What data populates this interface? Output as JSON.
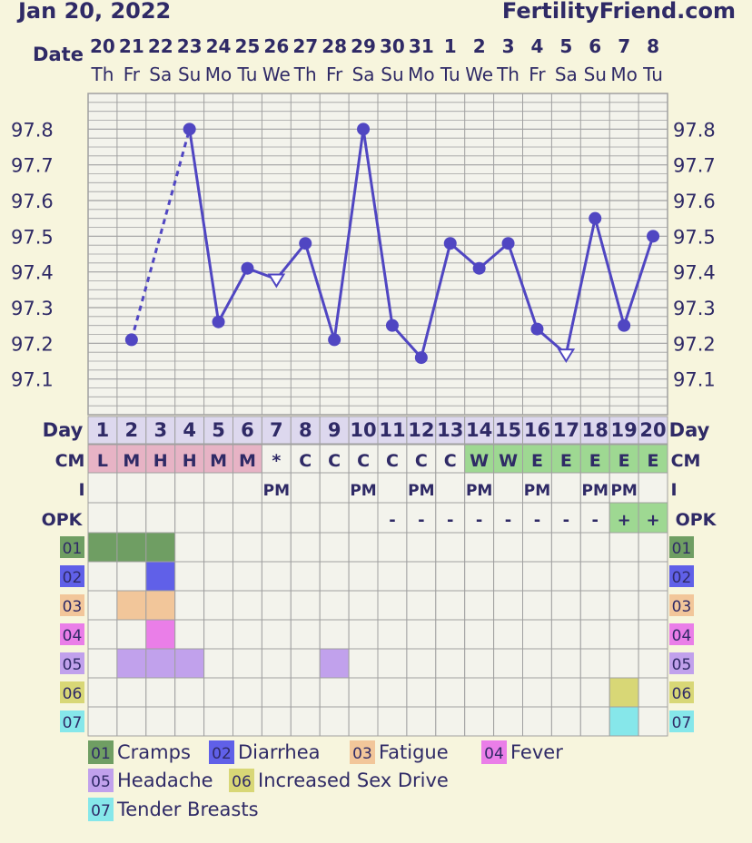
{
  "header": {
    "date": "Jan 20, 2022",
    "site": "FertilityFriend.com"
  },
  "colors": {
    "background": "#f7f5dd",
    "cell": "#f3f3ec",
    "grid": "#a0a0a0",
    "line": "#5046c2",
    "text": "#2f2a66",
    "cm_pink": "#e7b3c5",
    "cm_green": "#9ed892",
    "opk_green": "#9ed892"
  },
  "row_labels": {
    "date": "Date",
    "day": "Day",
    "cm": "CM",
    "i": "I",
    "opk": "OPK"
  },
  "columns": {
    "dates": [
      "20",
      "21",
      "22",
      "23",
      "24",
      "25",
      "26",
      "27",
      "28",
      "29",
      "30",
      "31",
      "1",
      "2",
      "3",
      "4",
      "5",
      "6",
      "7",
      "8"
    ],
    "weekdays": [
      "Th",
      "Fr",
      "Sa",
      "Su",
      "Mo",
      "Tu",
      "We",
      "Th",
      "Fr",
      "Sa",
      "Su",
      "Mo",
      "Tu",
      "We",
      "Th",
      "Fr",
      "Sa",
      "Su",
      "Mo",
      "Tu"
    ],
    "days": [
      "1",
      "2",
      "3",
      "4",
      "5",
      "6",
      "7",
      "8",
      "9",
      "10",
      "11",
      "12",
      "13",
      "14",
      "15",
      "16",
      "17",
      "18",
      "19",
      "20"
    ],
    "cm": [
      "L",
      "M",
      "H",
      "H",
      "M",
      "M",
      "*",
      "C",
      "C",
      "C",
      "C",
      "C",
      "C",
      "W",
      "W",
      "E",
      "E",
      "E",
      "E",
      "E"
    ],
    "cm_type": [
      "pink",
      "pink",
      "pink",
      "pink",
      "pink",
      "pink",
      "none",
      "none",
      "none",
      "none",
      "none",
      "none",
      "none",
      "green",
      "green",
      "green",
      "green",
      "green",
      "green",
      "green"
    ],
    "intercourse": [
      "",
      "",
      "",
      "",
      "",
      "",
      "PM",
      "",
      "",
      "PM",
      "",
      "PM",
      "",
      "PM",
      "",
      "PM",
      "",
      "PM",
      "PM",
      ""
    ],
    "opk": [
      "",
      "",
      "",
      "",
      "",
      "",
      "",
      "",
      "",
      "",
      "-",
      "-",
      "-",
      "-",
      "-",
      "-",
      "-",
      "-",
      "+",
      "+"
    ]
  },
  "chart_data": {
    "type": "line",
    "title": "",
    "ylim": [
      97.0,
      97.9
    ],
    "yticks": [
      "97.1",
      "97.2",
      "97.3",
      "97.4",
      "97.5",
      "97.6",
      "97.7",
      "97.8"
    ],
    "x": [
      "1",
      "2",
      "3",
      "4",
      "5",
      "6",
      "7",
      "8",
      "9",
      "10",
      "11",
      "12",
      "13",
      "14",
      "15",
      "16",
      "17",
      "18",
      "19",
      "20"
    ],
    "temps": [
      null,
      97.21,
      null,
      97.8,
      97.26,
      97.41,
      97.38,
      97.48,
      97.21,
      97.8,
      97.25,
      97.16,
      97.48,
      97.41,
      97.48,
      97.24,
      97.17,
      97.55,
      97.25,
      97.5
    ],
    "marker": [
      "",
      "circle",
      "",
      "circle",
      "circle",
      "circle",
      "triangle",
      "circle",
      "circle",
      "circle",
      "circle",
      "circle",
      "circle",
      "circle",
      "circle",
      "circle",
      "triangle",
      "circle",
      "circle",
      "circle"
    ],
    "dashed_segments": [
      [
        2,
        4
      ]
    ]
  },
  "symptoms": [
    {
      "code": "01",
      "name": "Cramps",
      "color": "#6f9e63",
      "days": [
        1,
        2,
        3
      ]
    },
    {
      "code": "02",
      "name": "Diarrhea",
      "color": "#6060e8",
      "days": [
        3
      ]
    },
    {
      "code": "03",
      "name": "Fatigue",
      "color": "#f2c69a",
      "days": [
        2,
        3
      ]
    },
    {
      "code": "04",
      "name": "Fever",
      "color": "#ea7ee8",
      "days": [
        3
      ]
    },
    {
      "code": "05",
      "name": "Headache",
      "color": "#c1a1ec",
      "days": [
        2,
        3,
        4,
        9
      ]
    },
    {
      "code": "06",
      "name": "Increased Sex Drive",
      "color": "#d8d776",
      "days": [
        19
      ]
    },
    {
      "code": "07",
      "name": "Tender Breasts",
      "color": "#86e7ea",
      "days": [
        19
      ]
    }
  ]
}
